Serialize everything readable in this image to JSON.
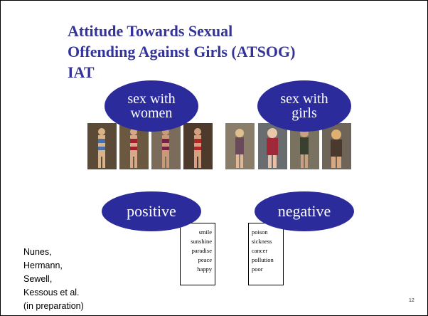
{
  "title": "Attitude Towards Sexual Offending Against Girls (ATSOG) IAT",
  "categories": [
    {
      "label": "sex with women",
      "words": []
    },
    {
      "label": "sex with girls",
      "words": []
    }
  ],
  "attributes": [
    {
      "label": "positive",
      "words": [
        "smile",
        "sunshine",
        "paradise",
        "peace",
        "happy"
      ]
    },
    {
      "label": "negative",
      "words": [
        "poison",
        "sickness",
        "cancer",
        "pollution",
        "poor"
      ]
    }
  ],
  "credits": [
    "Nunes,",
    "Hermann,",
    "Sewell,",
    "Kessous et al.",
    "(in preparation)"
  ],
  "page_number": "12"
}
